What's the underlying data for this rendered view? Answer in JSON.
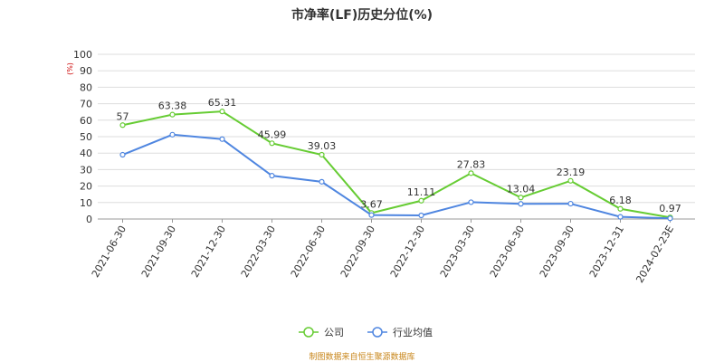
{
  "chart_data": {
    "type": "line",
    "title": "市净率(LF)历史分位(%)",
    "unit": "(%)",
    "ylim": [
      0,
      100
    ],
    "yticks": [
      0,
      10,
      20,
      30,
      40,
      50,
      60,
      70,
      80,
      90,
      100
    ],
    "categories": [
      "2021-06-30",
      "2021-09-30",
      "2021-12-30",
      "2022-03-30",
      "2022-06-30",
      "2022-09-30",
      "2022-12-30",
      "2023-03-30",
      "2023-06-30",
      "2023-09-30",
      "2023-12-31",
      "2024-02-23E"
    ],
    "series": [
      {
        "name": "公司",
        "color": "#66cc33",
        "values": [
          57,
          63.38,
          65.31,
          45.99,
          39.03,
          3.67,
          11.11,
          27.83,
          13.04,
          23.19,
          6.18,
          0.97
        ],
        "show_labels": true
      },
      {
        "name": "行业均值",
        "color": "#4f86e0",
        "values": [
          39,
          51.2,
          48.5,
          26.3,
          22.6,
          2.4,
          2.2,
          10.2,
          9.2,
          9.3,
          1.3,
          0.4
        ],
        "show_labels": false
      }
    ],
    "grid": true,
    "legend_position": "bottom-center",
    "source_text": "制图数据来自恒生聚源数据库"
  }
}
